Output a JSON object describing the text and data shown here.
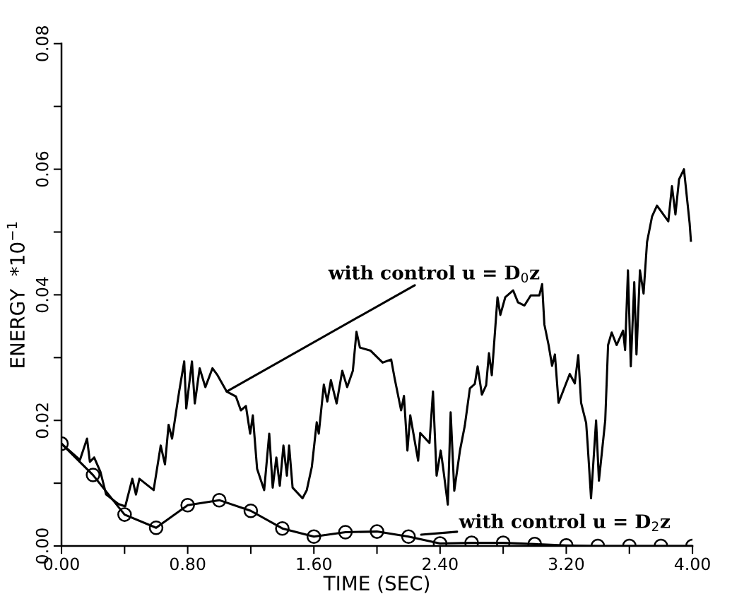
{
  "chart_data": {
    "type": "line",
    "xlabel": "TIME (SEC)",
    "ylabel": "ENERGY  *10$^{−1}$",
    "xlim": [
      0,
      4.0
    ],
    "ylim": [
      0,
      0.08
    ],
    "xticks": [
      {
        "value": 0,
        "label": "0.00"
      },
      {
        "value": 0.4,
        "label": null
      },
      {
        "value": 0.8,
        "label": "0.80"
      },
      {
        "value": 1.2,
        "label": null
      },
      {
        "value": 1.6,
        "label": "1.60"
      },
      {
        "value": 2.0,
        "label": null
      },
      {
        "value": 2.4,
        "label": "2.40"
      },
      {
        "value": 2.8,
        "label": null
      },
      {
        "value": 3.2,
        "label": "3.20"
      },
      {
        "value": 3.6,
        "label": null
      },
      {
        "value": 4.0,
        "label": "4.00"
      }
    ],
    "yticks": [
      {
        "value": 0,
        "label": "0.00"
      },
      {
        "value": 0.01,
        "label": null
      },
      {
        "value": 0.02,
        "label": "0.02"
      },
      {
        "value": 0.03,
        "label": null
      },
      {
        "value": 0.04,
        "label": "0.04"
      },
      {
        "value": 0.05,
        "label": null
      },
      {
        "value": 0.06,
        "label": "0.06"
      },
      {
        "value": 0.07,
        "label": null
      },
      {
        "value": 0.08,
        "label": "0.08"
      }
    ],
    "grid": false,
    "legend": false,
    "series": [
      {
        "color": "#000000",
        "marker": "none",
        "x": [
          0.0,
          0.117,
          0.162,
          0.18,
          0.207,
          0.247,
          0.283,
          0.36,
          0.404,
          0.449,
          0.472,
          0.494,
          0.584,
          0.629,
          0.656,
          0.679,
          0.701,
          0.746,
          0.778,
          0.791,
          0.827,
          0.845,
          0.876,
          0.912,
          0.957,
          0.989,
          1.047,
          1.106,
          1.137,
          1.169,
          1.196,
          1.213,
          1.24,
          1.285,
          1.317,
          1.339,
          1.362,
          1.384,
          1.407,
          1.429,
          1.443,
          1.465,
          1.528,
          1.555,
          1.587,
          1.618,
          1.631,
          1.663,
          1.685,
          1.708,
          1.744,
          1.78,
          1.811,
          1.847,
          1.87,
          1.892,
          1.96,
          2.036,
          2.09,
          2.112,
          2.153,
          2.171,
          2.193,
          2.211,
          2.261,
          2.274,
          2.333,
          2.355,
          2.378,
          2.404,
          2.418,
          2.449,
          2.467,
          2.49,
          2.526,
          2.557,
          2.589,
          2.62,
          2.638,
          2.665,
          2.692,
          2.71,
          2.728,
          2.764,
          2.782,
          2.813,
          2.863,
          2.894,
          2.935,
          2.975,
          3.029,
          3.047,
          3.061,
          3.088,
          3.11,
          3.128,
          3.151,
          3.182,
          3.222,
          3.254,
          3.276,
          3.294,
          3.326,
          3.335,
          3.357,
          3.389,
          3.407,
          3.447,
          3.465,
          3.488,
          3.519,
          3.56,
          3.573,
          3.591,
          3.609,
          3.631,
          3.645,
          3.667,
          3.69,
          3.712,
          3.744,
          3.775,
          3.847,
          3.87,
          3.892,
          3.915,
          3.946,
          3.982,
          3.99
        ],
        "values": [
          0.0163,
          0.0137,
          0.0171,
          0.0134,
          0.0141,
          0.0118,
          0.0082,
          0.0067,
          0.0063,
          0.0107,
          0.0082,
          0.0107,
          0.0089,
          0.016,
          0.013,
          0.0193,
          0.0171,
          0.0246,
          0.0294,
          0.0219,
          0.0294,
          0.0227,
          0.0283,
          0.0253,
          0.0283,
          0.0272,
          0.0246,
          0.0238,
          0.0216,
          0.0223,
          0.0179,
          0.0208,
          0.0123,
          0.0089,
          0.0179,
          0.0093,
          0.0141,
          0.0096,
          0.016,
          0.0112,
          0.016,
          0.0093,
          0.0076,
          0.0089,
          0.0126,
          0.0197,
          0.0179,
          0.0257,
          0.023,
          0.0264,
          0.0227,
          0.0279,
          0.0253,
          0.0279,
          0.0341,
          0.0316,
          0.0311,
          0.0292,
          0.0297,
          0.0267,
          0.0216,
          0.0239,
          0.0152,
          0.0208,
          0.0136,
          0.018,
          0.0164,
          0.0246,
          0.0112,
          0.0152,
          0.0127,
          0.0066,
          0.0213,
          0.0088,
          0.0152,
          0.0192,
          0.0251,
          0.0258,
          0.0286,
          0.0241,
          0.0256,
          0.0307,
          0.0272,
          0.0396,
          0.0368,
          0.0396,
          0.0407,
          0.0388,
          0.0383,
          0.0399,
          0.0399,
          0.0417,
          0.0353,
          0.032,
          0.0287,
          0.0305,
          0.0228,
          0.0248,
          0.0274,
          0.0259,
          0.0304,
          0.0228,
          0.0196,
          0.0164,
          0.0076,
          0.02,
          0.0104,
          0.02,
          0.032,
          0.034,
          0.032,
          0.0343,
          0.0312,
          0.0439,
          0.0286,
          0.042,
          0.0305,
          0.0439,
          0.0402,
          0.0484,
          0.0525,
          0.0542,
          0.0517,
          0.0573,
          0.0528,
          0.0584,
          0.06,
          0.0514,
          0.0486
        ]
      },
      {
        "color": "#000000",
        "marker": "circle",
        "x": [
          0.0,
          0.2,
          0.4,
          0.6,
          0.8,
          1.0,
          1.2,
          1.4,
          1.6,
          1.8,
          2.0,
          2.2,
          2.4,
          2.6,
          2.8,
          3.0,
          3.2,
          3.4,
          3.6,
          3.8,
          4.0
        ],
        "values": [
          0.0163,
          0.0113,
          0.005,
          0.0029,
          0.0065,
          0.0073,
          0.0056,
          0.0028,
          0.0015,
          0.0022,
          0.0023,
          0.0015,
          0.0004,
          0.0005,
          0.0005,
          0.0003,
          0.0001,
          0.0,
          0.0,
          0.0,
          0.0
        ]
      }
    ],
    "annotations": [
      {
        "text": "with control u = D$_{0}$z",
        "x": 1.047,
        "y": 0.0246
      },
      {
        "text": "with control u = D$_{2}$z",
        "x": 2.28,
        "y": 0.0018
      }
    ]
  }
}
